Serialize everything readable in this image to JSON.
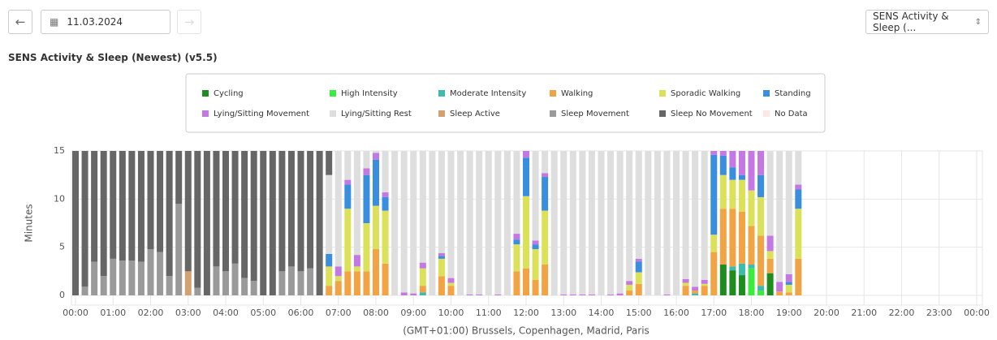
{
  "ui": {
    "date": "11.03.2024",
    "selector": "SENS Activity & Sleep (..."
  },
  "chart_data": {
    "type": "stacked_bar",
    "title": "SENS Activity & Sleep (Newest) (v5.5)",
    "y_label": "Minutes",
    "x_label": "(GMT+01:00) Brussels, Copenhagen, Madrid, Paris",
    "xlim": [
      0,
      1440
    ],
    "xticks": [
      {
        "value": 0,
        "label": "00:00"
      },
      {
        "value": 60,
        "label": "01:00"
      },
      {
        "value": 120,
        "label": "02:00"
      },
      {
        "value": 180,
        "label": "03:00"
      },
      {
        "value": 240,
        "label": "04:00"
      },
      {
        "value": 300,
        "label": "05:00"
      },
      {
        "value": 360,
        "label": "06:00"
      },
      {
        "value": 420,
        "label": "07:00"
      },
      {
        "value": 480,
        "label": "08:00"
      },
      {
        "value": 540,
        "label": "09:00"
      },
      {
        "value": 600,
        "label": "10:00"
      },
      {
        "value": 660,
        "label": "11:00"
      },
      {
        "value": 720,
        "label": "12:00"
      },
      {
        "value": 780,
        "label": "13:00"
      },
      {
        "value": 840,
        "label": "14:00"
      },
      {
        "value": 900,
        "label": "15:00"
      },
      {
        "value": 960,
        "label": "16:00"
      },
      {
        "value": 1020,
        "label": "17:00"
      },
      {
        "value": 1080,
        "label": "18:00"
      },
      {
        "value": 1140,
        "label": "19:00"
      },
      {
        "value": 1200,
        "label": "20:00"
      },
      {
        "value": 1260,
        "label": "21:00"
      },
      {
        "value": 1320,
        "label": "22:00"
      },
      {
        "value": 1380,
        "label": "23:00"
      },
      {
        "value": 1440,
        "label": "00:00"
      }
    ],
    "ylim": [
      0,
      15
    ],
    "yticks": [
      0,
      5,
      10,
      15
    ],
    "grid": true,
    "x": [
      0,
      15,
      30,
      45,
      60,
      75,
      90,
      105,
      120,
      135,
      150,
      165,
      180,
      195,
      210,
      225,
      240,
      255,
      270,
      285,
      300,
      315,
      330,
      345,
      360,
      375,
      390,
      405,
      420,
      435,
      450,
      465,
      480,
      495,
      510,
      525,
      540,
      555,
      570,
      585,
      600,
      615,
      630,
      645,
      660,
      675,
      690,
      705,
      720,
      735,
      750,
      765,
      780,
      795,
      810,
      825,
      840,
      855,
      870,
      885,
      900,
      915,
      930,
      945,
      960,
      975,
      990,
      1005,
      1020,
      1035,
      1050,
      1065,
      1080,
      1095,
      1110,
      1125,
      1140,
      1155
    ],
    "series": [
      {
        "name": "Cycling",
        "color": "#1e8c1e",
        "values": [
          0,
          0,
          0,
          0,
          0,
          0,
          0,
          0,
          0,
          0,
          0,
          0,
          0,
          0,
          0,
          0,
          0,
          0,
          0,
          0,
          0,
          0,
          0,
          0,
          0,
          0,
          0,
          0,
          0,
          0,
          0,
          0,
          0,
          0,
          0,
          0,
          0,
          0,
          0,
          0,
          0,
          0,
          0,
          0,
          0,
          0,
          0,
          0,
          0,
          0,
          0,
          0,
          0,
          0,
          0,
          0,
          0,
          0,
          0,
          0,
          0,
          0,
          0,
          0,
          0,
          0,
          0,
          0,
          0,
          3.2,
          2.6,
          2.1,
          0,
          0,
          2.3,
          0,
          0,
          0
        ]
      },
      {
        "name": "High Intensity",
        "color": "#3cec3c",
        "values": [
          0,
          0,
          0,
          0,
          0,
          0,
          0,
          0,
          0,
          0,
          0,
          0,
          0,
          0,
          0,
          0,
          0,
          0,
          0,
          0,
          0,
          0,
          0,
          0,
          0,
          0,
          0,
          0,
          0,
          0,
          0,
          0,
          0,
          0,
          0,
          0,
          0,
          0,
          0,
          0,
          0,
          0,
          0,
          0,
          0,
          0,
          0,
          0,
          0,
          0,
          0,
          0,
          0,
          0,
          0,
          0,
          0,
          0,
          0,
          0,
          0,
          0,
          0,
          0,
          0,
          0,
          0,
          0,
          0,
          0,
          0,
          0,
          2.8,
          0.5,
          0,
          0,
          0,
          0
        ]
      },
      {
        "name": "Moderate Intensity",
        "color": "#3cbcae",
        "values": [
          0,
          0,
          0,
          0,
          0,
          0,
          0,
          0,
          0,
          0,
          0,
          0,
          0,
          0,
          0,
          0,
          0,
          0,
          0,
          0,
          0,
          0,
          0,
          0,
          0,
          0,
          0,
          0,
          0,
          0,
          0,
          0,
          0,
          0,
          0,
          0,
          0,
          0.3,
          0,
          0,
          0,
          0,
          0,
          0,
          0,
          0,
          0,
          0,
          0,
          0,
          0,
          0,
          0,
          0,
          0,
          0,
          0,
          0,
          0,
          0,
          0,
          0,
          0,
          0,
          0,
          0,
          0.2,
          0,
          0,
          0,
          0.4,
          1.2,
          0.4,
          0.5,
          0,
          0,
          0,
          0
        ]
      },
      {
        "name": "Walking",
        "color": "#f2a444",
        "values": [
          0,
          0,
          0,
          0,
          0,
          0,
          0,
          0,
          0,
          0,
          0,
          0,
          0,
          0,
          0,
          0,
          0,
          0,
          0,
          0,
          0,
          0,
          0,
          0,
          0,
          0,
          0,
          1,
          1.5,
          2.5,
          2.5,
          2.5,
          4.8,
          3.3,
          0,
          0,
          0,
          0.7,
          0,
          2,
          1,
          0,
          0,
          0,
          0,
          0,
          0,
          2.5,
          2.8,
          1.6,
          3.2,
          0,
          0,
          0,
          0,
          0,
          0,
          0,
          0,
          0.5,
          1.2,
          0,
          0,
          0,
          0,
          1,
          0.3,
          1,
          4.5,
          5.8,
          6,
          5.4,
          4,
          5.2,
          1.5,
          0.4,
          0.3,
          3.8
        ]
      },
      {
        "name": "Sporadic Walking",
        "color": "#dbe25a",
        "values": [
          0,
          0,
          0,
          0,
          0,
          0,
          0,
          0,
          0,
          0,
          0,
          0,
          0,
          0,
          0,
          0,
          0,
          0,
          0,
          0,
          0,
          0,
          0,
          0,
          0,
          0,
          0,
          2,
          0.5,
          6.5,
          0.5,
          5,
          4.5,
          5.5,
          0,
          0,
          0,
          1.8,
          0,
          1.8,
          0.3,
          0,
          0,
          0,
          0,
          0,
          0,
          2.8,
          7.5,
          3.2,
          5.6,
          0,
          0,
          0,
          0,
          0,
          0,
          0,
          0,
          0.6,
          1.2,
          0,
          0,
          0,
          0,
          0.3,
          0,
          0.2,
          1.8,
          3.5,
          3,
          3.3,
          3.7,
          4,
          0.8,
          0,
          0.8,
          5.2
        ]
      },
      {
        "name": "Standing",
        "color": "#3a8ee0",
        "values": [
          0,
          0,
          0,
          0,
          0,
          0,
          0,
          0,
          0,
          0,
          0,
          0,
          0,
          0,
          0,
          0,
          0,
          0,
          0,
          0,
          0,
          0,
          0,
          0,
          0,
          0,
          0,
          1.3,
          0,
          2.5,
          0,
          5,
          4.8,
          1.4,
          0,
          0,
          0,
          0,
          0,
          0.3,
          0,
          0,
          0,
          0,
          0,
          0,
          0,
          0.5,
          4,
          0.5,
          3.5,
          0,
          0,
          0,
          0,
          0,
          0,
          0,
          0,
          0,
          1.1,
          0,
          0,
          0,
          0,
          0,
          0,
          0,
          8.3,
          2,
          1.3,
          0.5,
          0,
          2.3,
          0,
          0,
          0.3,
          2
        ]
      },
      {
        "name": "Lying/Sitting Movement",
        "color": "#c478e4",
        "values": [
          0,
          0,
          0,
          0,
          0,
          0,
          0,
          0,
          0,
          0,
          0,
          0,
          0,
          0,
          0,
          0,
          0,
          0,
          0,
          0,
          0,
          0,
          0,
          0,
          0,
          0,
          0,
          0,
          1,
          0.5,
          1.2,
          0.7,
          0.7,
          0.5,
          0,
          0.3,
          0.2,
          0.6,
          0,
          0.3,
          0.5,
          0,
          0.1,
          0.1,
          0,
          0.1,
          0,
          0.6,
          0.7,
          0.4,
          0.4,
          0,
          0.1,
          0.1,
          0.1,
          0.1,
          0,
          0.1,
          0.2,
          0.4,
          0.3,
          0,
          0,
          0.1,
          0,
          0.4,
          0.4,
          0.4,
          0.4,
          0.5,
          1.7,
          2.5,
          4.1,
          2.5,
          1.6,
          1,
          0.8,
          0.5
        ]
      },
      {
        "name": "Lying/Sitting Rest",
        "color": "#dedede",
        "values": [
          0,
          0,
          0,
          0,
          0,
          0,
          0,
          0,
          0,
          0,
          0,
          0,
          0,
          0,
          0,
          0,
          0,
          0,
          0,
          0,
          0,
          0,
          0,
          0,
          0,
          0,
          0,
          8.2,
          12,
          3,
          10.8,
          1.8,
          0.2,
          4.3,
          15,
          14.7,
          14.8,
          11.6,
          15,
          10.6,
          13.2,
          15,
          14.9,
          14.9,
          15,
          14.9,
          15,
          8.6,
          0,
          9.3,
          2.3,
          15,
          14.9,
          14.9,
          14.9,
          14.9,
          15,
          14.9,
          14.8,
          13.5,
          11.2,
          15,
          15,
          14.9,
          15,
          13.3,
          14.1,
          13.4,
          0,
          0,
          0,
          0,
          0,
          0,
          8.8,
          13.6,
          12.8,
          3.5
        ]
      },
      {
        "name": "Sleep Active",
        "color": "#d4a272",
        "values": [
          0,
          0,
          0,
          0,
          0,
          0,
          0,
          0,
          0,
          0,
          0,
          0,
          2.5,
          0,
          0,
          0,
          0,
          0,
          0,
          0,
          0,
          0,
          0,
          0,
          0,
          0,
          0,
          0,
          0,
          0,
          0,
          0,
          0,
          0,
          0,
          0,
          0,
          0,
          0,
          0,
          0,
          0,
          0,
          0,
          0,
          0,
          0,
          0,
          0,
          0,
          0,
          0,
          0,
          0,
          0,
          0,
          0,
          0,
          0,
          0,
          0,
          0,
          0,
          0,
          0,
          0,
          0,
          0,
          0,
          0,
          0,
          0,
          0,
          0,
          0,
          0,
          0,
          0
        ]
      },
      {
        "name": "Sleep Movement",
        "color": "#9a9a9a",
        "values": [
          0,
          0.9,
          3.5,
          2,
          3.8,
          3.6,
          3.6,
          3.5,
          4.8,
          4.5,
          2,
          9.5,
          0,
          0.8,
          0,
          3,
          2.5,
          3.3,
          1.8,
          1.5,
          0,
          0,
          2.5,
          3,
          2.5,
          2.8,
          0,
          0,
          0,
          0,
          0,
          0,
          0,
          0,
          0,
          0,
          0,
          0,
          0,
          0,
          0,
          0,
          0,
          0,
          0,
          0,
          0,
          0,
          0,
          0,
          0,
          0,
          0,
          0,
          0,
          0,
          0,
          0,
          0,
          0,
          0,
          0,
          0,
          0,
          0,
          0,
          0,
          0,
          0,
          0,
          0,
          0,
          0,
          0,
          0,
          0,
          0,
          0
        ]
      },
      {
        "name": "Sleep No Movement",
        "color": "#666666",
        "values": [
          15,
          14.1,
          11.5,
          13,
          11.2,
          11.4,
          11.4,
          11.5,
          10.2,
          10.5,
          13,
          5.5,
          12.5,
          14.2,
          15,
          12,
          12.5,
          11.7,
          13.2,
          13.5,
          15,
          15,
          12.5,
          12,
          12.5,
          12.2,
          15,
          2.5,
          0,
          0,
          0,
          0,
          0,
          0,
          0,
          0,
          0,
          0,
          0,
          0,
          0,
          0,
          0,
          0,
          0,
          0,
          0,
          0,
          0,
          0,
          0,
          0,
          0,
          0,
          0,
          0,
          0,
          0,
          0,
          0,
          0,
          0,
          0,
          0,
          0,
          0,
          0,
          0,
          0,
          0,
          0,
          0,
          0,
          0,
          0,
          0,
          0,
          0
        ]
      },
      {
        "name": "No Data",
        "color": "#fde8e8",
        "values": [
          0,
          0,
          0,
          0,
          0,
          0,
          0,
          0,
          0,
          0,
          0,
          0,
          0,
          0,
          0,
          0,
          0,
          0,
          0,
          0,
          0,
          0,
          0,
          0,
          0,
          0,
          0,
          0,
          0,
          0,
          0,
          0,
          0,
          0,
          0,
          0,
          0,
          0,
          0,
          0,
          0,
          0,
          0,
          0,
          0,
          0,
          0,
          0,
          0,
          0,
          0,
          0,
          0,
          0,
          0,
          0,
          0,
          0,
          0,
          0,
          0,
          0,
          0,
          0,
          0,
          0,
          0,
          0,
          0,
          0,
          0,
          0,
          0,
          0,
          0,
          0,
          0,
          0
        ]
      }
    ]
  }
}
